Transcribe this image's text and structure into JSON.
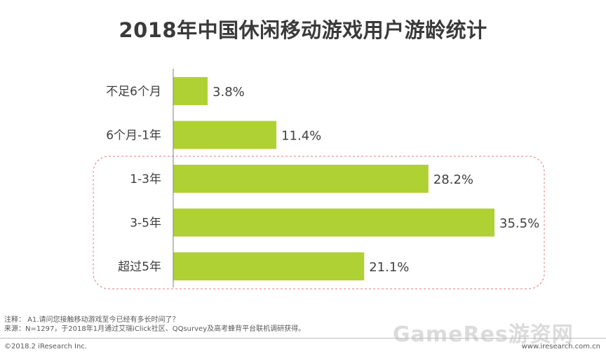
{
  "chart_data": {
    "type": "bar",
    "orientation": "horizontal",
    "title": "2018年中国休闲移动游戏用户游龄统计",
    "categories": [
      "不足6个月",
      "6个月-1年",
      "1-3年",
      "3-5年",
      "超过5年"
    ],
    "values": [
      3.8,
      11.4,
      28.2,
      35.5,
      21.1
    ],
    "value_labels": [
      "3.8%",
      "11.4%",
      "28.2%",
      "35.5%",
      "21.1%"
    ],
    "unit": "%",
    "xlim": [
      0,
      35.5
    ],
    "grid": false,
    "highlight_categories": [
      "1-3年",
      "3-5年",
      "超过5年"
    ]
  },
  "colors": {
    "bar": "#b0d133",
    "highlight_border": "#e07a80",
    "axis": "#7f7f7f"
  },
  "notes": {
    "line1": "注释： A1.请问您接触移动游戏至今已经有多长时间了？",
    "line2": "来源：N=1297，于2018年1月通过艾瑞iClick社区、QQsurvey及高考蜂背平台联机调研获得。"
  },
  "footer": {
    "copyright": "©2018.2 iResearch Inc.",
    "site": "www.iresearch.com.cn",
    "watermark": "GameRes游资网"
  }
}
